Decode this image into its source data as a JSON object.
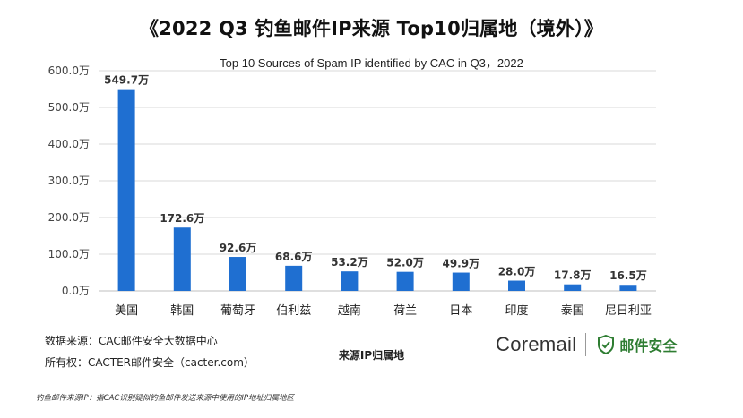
{
  "title": "《2022 Q3 钓鱼邮件IP来源 Top10归属地（境外）》",
  "subtitle": "Top 10 Sources of Spam IP  identified by CAC in Q3，2022",
  "colors": {
    "bar": "#1f6fd1",
    "grid": "#d9d9d9",
    "axis_text": "#444444"
  },
  "chart_data": {
    "type": "bar",
    "categories": [
      "美国",
      "韩国",
      "葡萄牙",
      "伯利兹",
      "越南",
      "荷兰",
      "日本",
      "印度",
      "泰国",
      "尼日利亚"
    ],
    "values": [
      549.7,
      172.6,
      92.6,
      68.6,
      53.2,
      52.0,
      49.9,
      28.0,
      17.8,
      16.5
    ],
    "data_labels": [
      "549.7万",
      "172.6万",
      "92.6万",
      "68.6万",
      "53.2万",
      "52.0万",
      "49.9万",
      "28.0万",
      "17.8万",
      "16.5万"
    ],
    "y_ticks": [
      "0.0万",
      "100.0万",
      "200.0万",
      "300.0万",
      "400.0万",
      "500.0万",
      "600.0万"
    ],
    "ylim": [
      0,
      600
    ],
    "y_unit": "万",
    "xlabel": "来源IP归属地",
    "ylabel": "",
    "grid": true,
    "legend": "none"
  },
  "footer": {
    "source": "数据来源：CAC邮件安全大数据中心",
    "copyright": "所有权：CACTER邮件安全（cacter.com）",
    "note": "钓鱼邮件来源IP：指CAC识别疑似钓鱼邮件发送来源中使用的IP地址归属地区"
  },
  "brand": {
    "name": "Coremail",
    "tag": "邮件安全",
    "shield_icon": "shield-check-icon"
  }
}
